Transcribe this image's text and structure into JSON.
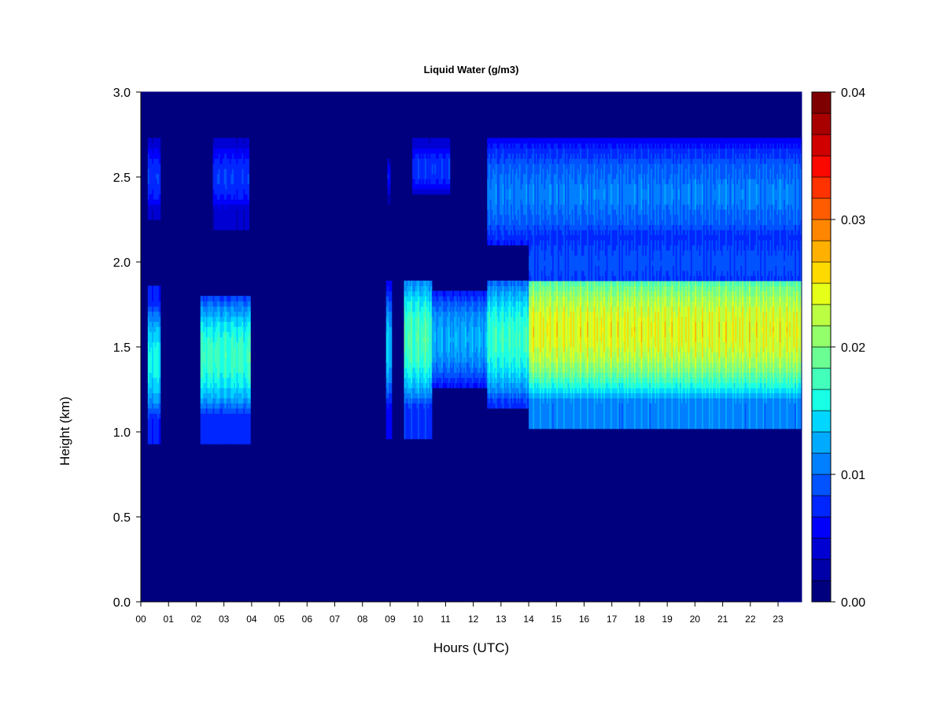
{
  "chart_data": {
    "type": "heatmap",
    "title": "Liquid Water (g/m3)",
    "xlabel": "Hours (UTC)",
    "ylabel": "Height (km)",
    "xlim": [
      0,
      23.85
    ],
    "ylim": [
      0.0,
      3.0
    ],
    "x_ticks": [
      {
        "value": 0,
        "label": "00"
      },
      {
        "value": 1,
        "label": "01"
      },
      {
        "value": 2,
        "label": "02"
      },
      {
        "value": 3,
        "label": "03"
      },
      {
        "value": 4,
        "label": "04"
      },
      {
        "value": 5,
        "label": "05"
      },
      {
        "value": 6,
        "label": "06"
      },
      {
        "value": 7,
        "label": "07"
      },
      {
        "value": 8,
        "label": "08"
      },
      {
        "value": 9,
        "label": "09"
      },
      {
        "value": 10,
        "label": "10"
      },
      {
        "value": 11,
        "label": "11"
      },
      {
        "value": 12,
        "label": "12"
      },
      {
        "value": 13,
        "label": "13"
      },
      {
        "value": 14,
        "label": "14"
      },
      {
        "value": 15,
        "label": "15"
      },
      {
        "value": 16,
        "label": "16"
      },
      {
        "value": 17,
        "label": "17"
      },
      {
        "value": 18,
        "label": "18"
      },
      {
        "value": 19,
        "label": "19"
      },
      {
        "value": 20,
        "label": "20"
      },
      {
        "value": 21,
        "label": "21"
      },
      {
        "value": 22,
        "label": "22"
      },
      {
        "value": 23,
        "label": "23"
      }
    ],
    "y_ticks": [
      {
        "value": 0.0,
        "label": "0.0"
      },
      {
        "value": 0.5,
        "label": "0.5"
      },
      {
        "value": 1.0,
        "label": "1.0"
      },
      {
        "value": 1.5,
        "label": "1.5"
      },
      {
        "value": 2.0,
        "label": "2.0"
      },
      {
        "value": 2.5,
        "label": "2.5"
      },
      {
        "value": 3.0,
        "label": "3.0"
      }
    ],
    "colorbar": {
      "min": 0.0,
      "max": 0.04,
      "ticks": [
        {
          "value": 0.0,
          "label": "0.00"
        },
        {
          "value": 0.01,
          "label": "0.01"
        },
        {
          "value": 0.02,
          "label": "0.02"
        },
        {
          "value": 0.03,
          "label": "0.03"
        },
        {
          "value": 0.04,
          "label": "0.04"
        }
      ],
      "colors": [
        "#00007f",
        "#0000a8",
        "#0000d2",
        "#0000fb",
        "#0026ff",
        "#0053ff",
        "#007fff",
        "#00abff",
        "#00d6ff",
        "#18ffe6",
        "#42ffbc",
        "#6bff93",
        "#93ff6b",
        "#bcff42",
        "#e6ff18",
        "#ffda00",
        "#ffb000",
        "#ff8600",
        "#ff5c00",
        "#ff3200",
        "#fb0800",
        "#d10000",
        "#a80000",
        "#7f0000"
      ]
    },
    "grid": false,
    "legend": "right",
    "features": [
      {
        "t0": 0.25,
        "t1": 0.7,
        "h0": 0.92,
        "h1": 1.85,
        "peak": 0.017,
        "hc": 1.42,
        "hw": 0.35
      },
      {
        "t0": 0.25,
        "t1": 0.7,
        "h0": 2.25,
        "h1": 2.72,
        "peak": 0.009,
        "hc": 2.5,
        "hw": 0.2
      },
      {
        "t0": 2.15,
        "t1": 3.95,
        "h0": 0.93,
        "h1": 1.8,
        "peak": 0.019,
        "hc": 1.45,
        "hw": 0.35
      },
      {
        "t0": 2.6,
        "t1": 3.9,
        "h0": 2.2,
        "h1": 2.72,
        "peak": 0.009,
        "hc": 2.5,
        "hw": 0.2
      },
      {
        "t0": 8.85,
        "t1": 9.05,
        "h0": 0.95,
        "h1": 1.9,
        "peak": 0.015,
        "hc": 1.5,
        "hw": 0.35
      },
      {
        "t0": 8.9,
        "t1": 9.0,
        "h0": 2.35,
        "h1": 2.6,
        "peak": 0.007,
        "hc": 2.5,
        "hw": 0.1
      },
      {
        "t0": 9.5,
        "t1": 10.5,
        "h0": 0.95,
        "h1": 1.9,
        "peak": 0.02,
        "hc": 1.55,
        "hw": 0.4
      },
      {
        "t0": 9.8,
        "t1": 11.15,
        "h0": 2.4,
        "h1": 2.72,
        "peak": 0.009,
        "hc": 2.55,
        "hw": 0.15
      },
      {
        "t0": 10.5,
        "t1": 12.5,
        "h0": 1.25,
        "h1": 1.82,
        "peak": 0.014,
        "hc": 1.55,
        "hw": 0.3
      },
      {
        "t0": 12.5,
        "t1": 14.0,
        "h0": 1.13,
        "h1": 1.9,
        "peak": 0.019,
        "hc": 1.55,
        "hw": 0.38
      },
      {
        "t0": 14.0,
        "t1": 23.85,
        "h0": 1.03,
        "h1": 1.9,
        "peak": 0.027,
        "hc": 1.6,
        "hw": 0.42
      },
      {
        "t0": 12.5,
        "t1": 23.85,
        "h0": 2.1,
        "h1": 2.72,
        "peak": 0.012,
        "hc": 2.4,
        "hw": 0.35
      },
      {
        "t0": 14.0,
        "t1": 23.85,
        "h0": 1.88,
        "h1": 2.12,
        "peak": 0.01,
        "hc": 2.0,
        "hw": 0.3
      }
    ]
  }
}
